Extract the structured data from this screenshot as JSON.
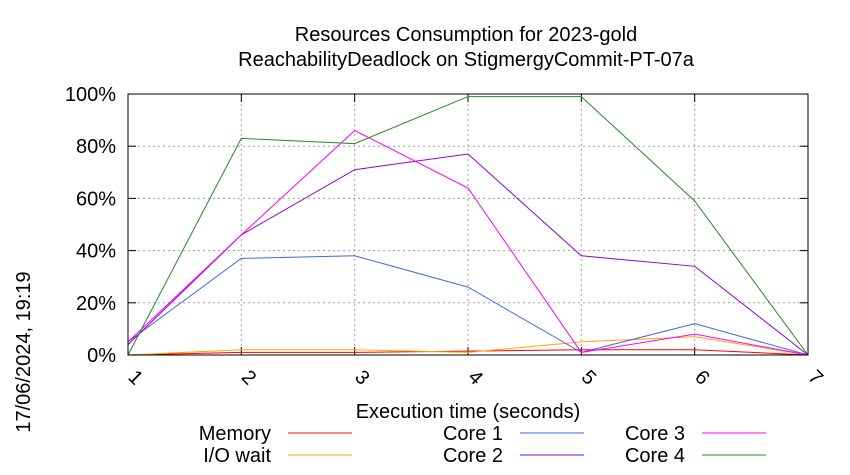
{
  "chart_data": {
    "type": "line",
    "title_lines": [
      "Resources Consumption for 2023-gold",
      "ReachabilityDeadlock on StigmergyCommit-PT-07a"
    ],
    "xlabel": "Execution time (seconds)",
    "ylabel": "",
    "timestamp": "17/06/2024, 19:19",
    "xlim": [
      1,
      7
    ],
    "ylim": [
      0,
      100
    ],
    "x_ticks": [
      "1",
      "2",
      "3",
      "4",
      "5",
      "6",
      "7"
    ],
    "y_ticks": [
      "0%",
      "20%",
      "40%",
      "60%",
      "80%",
      "100%"
    ],
    "grid": true,
    "legend_placement": "bottom",
    "x": [
      1,
      2,
      3,
      4,
      5,
      6,
      7
    ],
    "series": [
      {
        "name": "Memory",
        "color": "#ff0000",
        "values": [
          0,
          1,
          1,
          1.5,
          2,
          2,
          0
        ]
      },
      {
        "name": "I/O wait",
        "color": "#ffa500",
        "values": [
          0,
          2,
          2,
          1,
          5,
          7,
          0
        ]
      },
      {
        "name": "Core 1",
        "color": "#4169e1",
        "values": [
          5,
          37,
          38,
          26,
          1,
          12,
          0
        ]
      },
      {
        "name": "Core 2",
        "color": "#9400d3",
        "values": [
          4,
          46,
          71,
          77,
          38,
          34,
          0
        ]
      },
      {
        "name": "Core 3",
        "color": "#ff00ff",
        "values": [
          5,
          46,
          86,
          64,
          1,
          8,
          0
        ]
      },
      {
        "name": "Core 4",
        "color": "#228b22",
        "values": [
          0,
          83,
          81,
          99,
          99,
          59,
          0
        ]
      }
    ]
  }
}
